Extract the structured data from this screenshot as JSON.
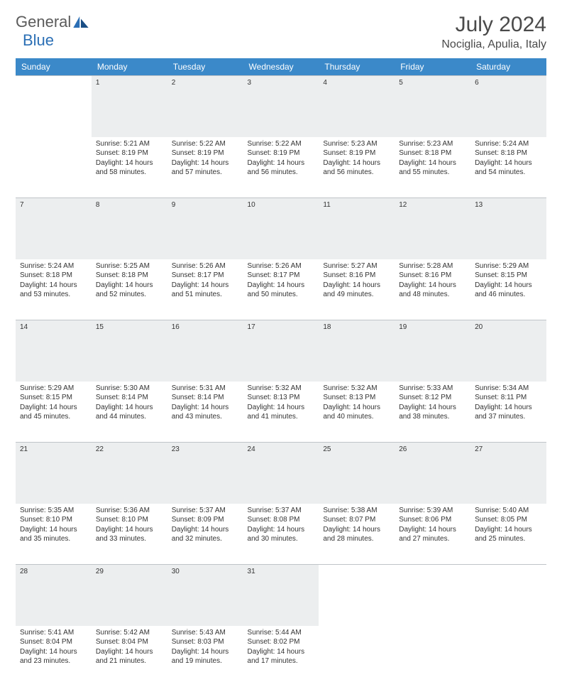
{
  "brand": {
    "part1": "General",
    "part2": "Blue"
  },
  "title": "July 2024",
  "location": "Nociglia, Apulia, Italy",
  "colors": {
    "header_bg": "#3b89c9",
    "header_text": "#ffffff",
    "daynum_bg": "#eceeef",
    "daynum_text": "#6d6d6d",
    "border": "#bfc4c8",
    "body_text": "#333333",
    "title_text": "#4a4a4a",
    "logo_gray": "#5b5b5b",
    "logo_blue": "#2b6fb5"
  },
  "weekdays": [
    "Sunday",
    "Monday",
    "Tuesday",
    "Wednesday",
    "Thursday",
    "Friday",
    "Saturday"
  ],
  "weeks": [
    {
      "nums": [
        "",
        "1",
        "2",
        "3",
        "4",
        "5",
        "6"
      ],
      "cells": [
        null,
        {
          "sunrise": "Sunrise: 5:21 AM",
          "sunset": "Sunset: 8:19 PM",
          "day1": "Daylight: 14 hours",
          "day2": "and 58 minutes."
        },
        {
          "sunrise": "Sunrise: 5:22 AM",
          "sunset": "Sunset: 8:19 PM",
          "day1": "Daylight: 14 hours",
          "day2": "and 57 minutes."
        },
        {
          "sunrise": "Sunrise: 5:22 AM",
          "sunset": "Sunset: 8:19 PM",
          "day1": "Daylight: 14 hours",
          "day2": "and 56 minutes."
        },
        {
          "sunrise": "Sunrise: 5:23 AM",
          "sunset": "Sunset: 8:19 PM",
          "day1": "Daylight: 14 hours",
          "day2": "and 56 minutes."
        },
        {
          "sunrise": "Sunrise: 5:23 AM",
          "sunset": "Sunset: 8:18 PM",
          "day1": "Daylight: 14 hours",
          "day2": "and 55 minutes."
        },
        {
          "sunrise": "Sunrise: 5:24 AM",
          "sunset": "Sunset: 8:18 PM",
          "day1": "Daylight: 14 hours",
          "day2": "and 54 minutes."
        }
      ]
    },
    {
      "nums": [
        "7",
        "8",
        "9",
        "10",
        "11",
        "12",
        "13"
      ],
      "cells": [
        {
          "sunrise": "Sunrise: 5:24 AM",
          "sunset": "Sunset: 8:18 PM",
          "day1": "Daylight: 14 hours",
          "day2": "and 53 minutes."
        },
        {
          "sunrise": "Sunrise: 5:25 AM",
          "sunset": "Sunset: 8:18 PM",
          "day1": "Daylight: 14 hours",
          "day2": "and 52 minutes."
        },
        {
          "sunrise": "Sunrise: 5:26 AM",
          "sunset": "Sunset: 8:17 PM",
          "day1": "Daylight: 14 hours",
          "day2": "and 51 minutes."
        },
        {
          "sunrise": "Sunrise: 5:26 AM",
          "sunset": "Sunset: 8:17 PM",
          "day1": "Daylight: 14 hours",
          "day2": "and 50 minutes."
        },
        {
          "sunrise": "Sunrise: 5:27 AM",
          "sunset": "Sunset: 8:16 PM",
          "day1": "Daylight: 14 hours",
          "day2": "and 49 minutes."
        },
        {
          "sunrise": "Sunrise: 5:28 AM",
          "sunset": "Sunset: 8:16 PM",
          "day1": "Daylight: 14 hours",
          "day2": "and 48 minutes."
        },
        {
          "sunrise": "Sunrise: 5:29 AM",
          "sunset": "Sunset: 8:15 PM",
          "day1": "Daylight: 14 hours",
          "day2": "and 46 minutes."
        }
      ]
    },
    {
      "nums": [
        "14",
        "15",
        "16",
        "17",
        "18",
        "19",
        "20"
      ],
      "cells": [
        {
          "sunrise": "Sunrise: 5:29 AM",
          "sunset": "Sunset: 8:15 PM",
          "day1": "Daylight: 14 hours",
          "day2": "and 45 minutes."
        },
        {
          "sunrise": "Sunrise: 5:30 AM",
          "sunset": "Sunset: 8:14 PM",
          "day1": "Daylight: 14 hours",
          "day2": "and 44 minutes."
        },
        {
          "sunrise": "Sunrise: 5:31 AM",
          "sunset": "Sunset: 8:14 PM",
          "day1": "Daylight: 14 hours",
          "day2": "and 43 minutes."
        },
        {
          "sunrise": "Sunrise: 5:32 AM",
          "sunset": "Sunset: 8:13 PM",
          "day1": "Daylight: 14 hours",
          "day2": "and 41 minutes."
        },
        {
          "sunrise": "Sunrise: 5:32 AM",
          "sunset": "Sunset: 8:13 PM",
          "day1": "Daylight: 14 hours",
          "day2": "and 40 minutes."
        },
        {
          "sunrise": "Sunrise: 5:33 AM",
          "sunset": "Sunset: 8:12 PM",
          "day1": "Daylight: 14 hours",
          "day2": "and 38 minutes."
        },
        {
          "sunrise": "Sunrise: 5:34 AM",
          "sunset": "Sunset: 8:11 PM",
          "day1": "Daylight: 14 hours",
          "day2": "and 37 minutes."
        }
      ]
    },
    {
      "nums": [
        "21",
        "22",
        "23",
        "24",
        "25",
        "26",
        "27"
      ],
      "cells": [
        {
          "sunrise": "Sunrise: 5:35 AM",
          "sunset": "Sunset: 8:10 PM",
          "day1": "Daylight: 14 hours",
          "day2": "and 35 minutes."
        },
        {
          "sunrise": "Sunrise: 5:36 AM",
          "sunset": "Sunset: 8:10 PM",
          "day1": "Daylight: 14 hours",
          "day2": "and 33 minutes."
        },
        {
          "sunrise": "Sunrise: 5:37 AM",
          "sunset": "Sunset: 8:09 PM",
          "day1": "Daylight: 14 hours",
          "day2": "and 32 minutes."
        },
        {
          "sunrise": "Sunrise: 5:37 AM",
          "sunset": "Sunset: 8:08 PM",
          "day1": "Daylight: 14 hours",
          "day2": "and 30 minutes."
        },
        {
          "sunrise": "Sunrise: 5:38 AM",
          "sunset": "Sunset: 8:07 PM",
          "day1": "Daylight: 14 hours",
          "day2": "and 28 minutes."
        },
        {
          "sunrise": "Sunrise: 5:39 AM",
          "sunset": "Sunset: 8:06 PM",
          "day1": "Daylight: 14 hours",
          "day2": "and 27 minutes."
        },
        {
          "sunrise": "Sunrise: 5:40 AM",
          "sunset": "Sunset: 8:05 PM",
          "day1": "Daylight: 14 hours",
          "day2": "and 25 minutes."
        }
      ]
    },
    {
      "nums": [
        "28",
        "29",
        "30",
        "31",
        "",
        "",
        ""
      ],
      "cells": [
        {
          "sunrise": "Sunrise: 5:41 AM",
          "sunset": "Sunset: 8:04 PM",
          "day1": "Daylight: 14 hours",
          "day2": "and 23 minutes."
        },
        {
          "sunrise": "Sunrise: 5:42 AM",
          "sunset": "Sunset: 8:04 PM",
          "day1": "Daylight: 14 hours",
          "day2": "and 21 minutes."
        },
        {
          "sunrise": "Sunrise: 5:43 AM",
          "sunset": "Sunset: 8:03 PM",
          "day1": "Daylight: 14 hours",
          "day2": "and 19 minutes."
        },
        {
          "sunrise": "Sunrise: 5:44 AM",
          "sunset": "Sunset: 8:02 PM",
          "day1": "Daylight: 14 hours",
          "day2": "and 17 minutes."
        },
        null,
        null,
        null
      ]
    }
  ]
}
